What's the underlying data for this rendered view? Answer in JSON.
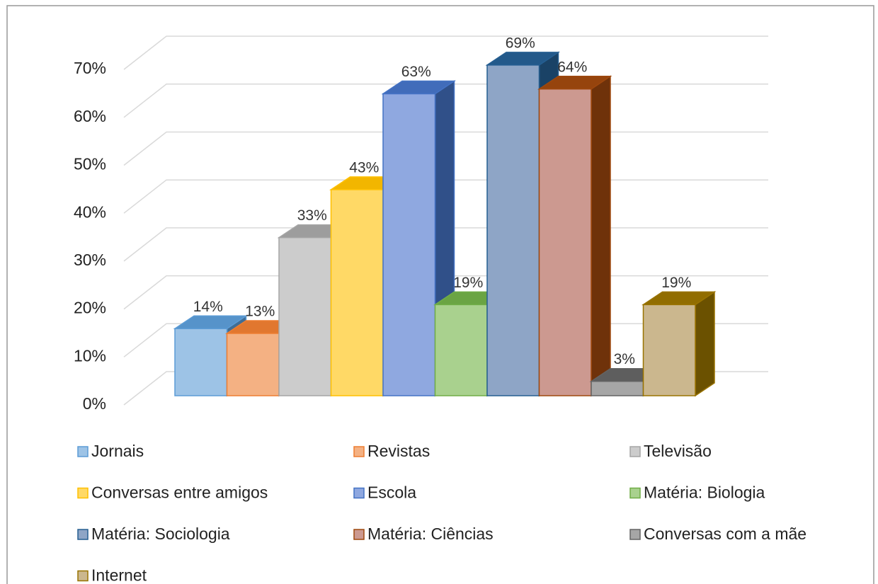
{
  "chart_data": {
    "type": "bar3d",
    "ylim": [
      0,
      70
    ],
    "yticks": [
      {
        "value": 0,
        "label": "0%"
      },
      {
        "value": 10,
        "label": "10%"
      },
      {
        "value": 20,
        "label": "20%"
      },
      {
        "value": 30,
        "label": "30%"
      },
      {
        "value": 40,
        "label": "40%"
      },
      {
        "value": 50,
        "label": "50%"
      },
      {
        "value": 60,
        "label": "60%"
      },
      {
        "value": 70,
        "label": "70%"
      }
    ],
    "grid": true,
    "legend": "bottom",
    "series": [
      {
        "name": "Jornais",
        "color": "#9dc3e6",
        "edge": "#5b9bd5",
        "values": [
          14
        ],
        "value_labels": [
          "14%"
        ]
      },
      {
        "name": "Revistas",
        "color": "#f4b183",
        "edge": "#ed7d31",
        "values": [
          13
        ],
        "value_labels": [
          "13%"
        ]
      },
      {
        "name": "Televisão",
        "color": "#cccccc",
        "edge": "#a5a5a5",
        "values": [
          33
        ],
        "value_labels": [
          "33%"
        ]
      },
      {
        "name": "Conversas entre amigos",
        "color": "#ffd966",
        "edge": "#ffc000",
        "values": [
          43
        ],
        "value_labels": [
          "43%"
        ]
      },
      {
        "name": "Escola",
        "color": "#8fa8e0",
        "edge": "#4472c4",
        "values": [
          63
        ],
        "value_labels": [
          "63%"
        ]
      },
      {
        "name": "Matéria: Biologia",
        "color": "#a9d18e",
        "edge": "#70ad47",
        "values": [
          19
        ],
        "value_labels": [
          "19%"
        ]
      },
      {
        "name": "Matéria: Sociologia",
        "color": "#8ea5c6",
        "edge": "#255e91",
        "values": [
          69
        ],
        "value_labels": [
          "69%"
        ]
      },
      {
        "name": "Matéria: Ciências",
        "color": "#cc9990",
        "edge": "#9e480e",
        "values": [
          64
        ],
        "value_labels": [
          "64%"
        ]
      },
      {
        "name": "Conversas com a mãe",
        "color": "#a6a6a6",
        "edge": "#636363",
        "values": [
          3
        ],
        "value_labels": [
          "3%"
        ]
      },
      {
        "name": "Internet",
        "color": "#cbb78e",
        "edge": "#997300",
        "values": [
          19
        ],
        "value_labels": [
          "19%"
        ]
      }
    ]
  }
}
